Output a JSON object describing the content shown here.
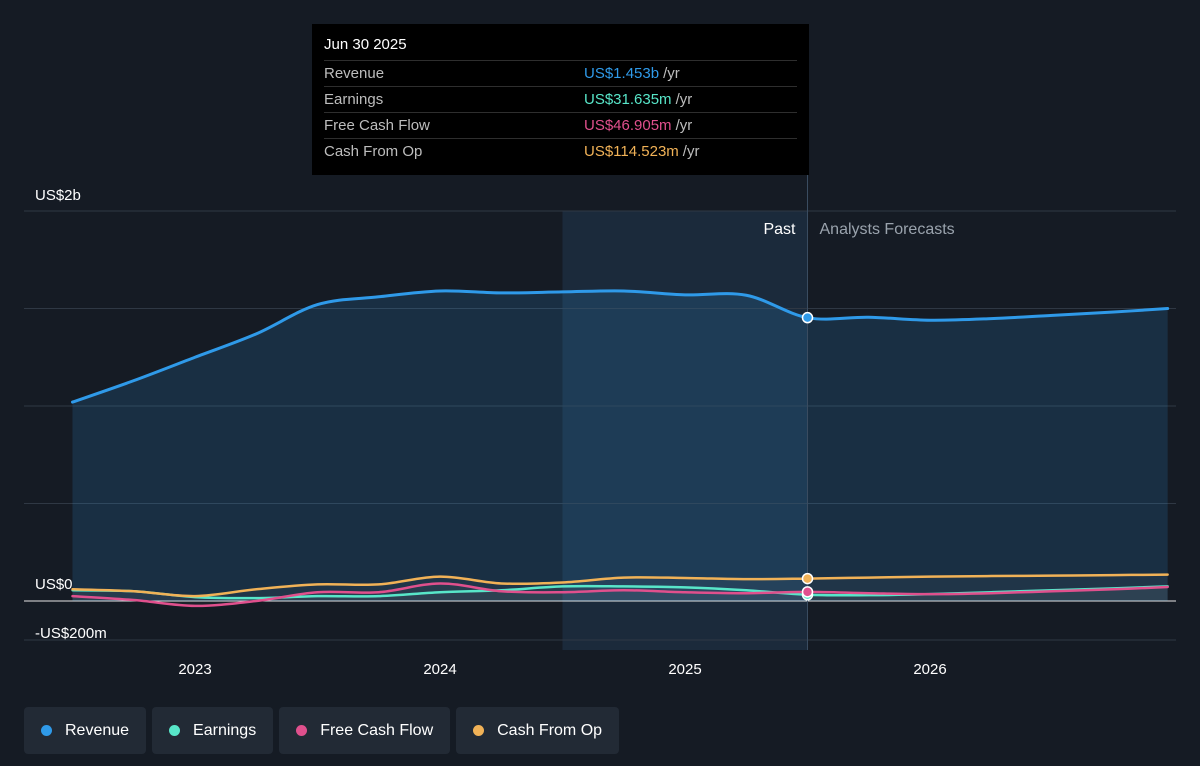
{
  "tooltip": {
    "date": "Jun 30 2025",
    "rows": [
      {
        "label": "Revenue",
        "value": "US$1.453b",
        "unit": "/yr",
        "color": "#2f9ae9"
      },
      {
        "label": "Earnings",
        "value": "US$31.635m",
        "unit": "/yr",
        "color": "#58e6c9"
      },
      {
        "label": "Free Cash Flow",
        "value": "US$46.905m",
        "unit": "/yr",
        "color": "#e0508d"
      },
      {
        "label": "Cash From Op",
        "value": "US$114.523m",
        "unit": "/yr",
        "color": "#f1b257"
      }
    ]
  },
  "legend": [
    {
      "label": "Revenue",
      "color": "#2f9ae9"
    },
    {
      "label": "Earnings",
      "color": "#58e6c9"
    },
    {
      "label": "Free Cash Flow",
      "color": "#e0508d"
    },
    {
      "label": "Cash From Op",
      "color": "#f1b257"
    }
  ],
  "chart_data": {
    "type": "line",
    "title": "",
    "xlabel": "",
    "ylabel": "",
    "x_ticks": [
      2023,
      2024,
      2025,
      2026
    ],
    "x_range": [
      2022.5,
      2026.97
    ],
    "ylim": [
      -200,
      2000
    ],
    "y_tick_labels": [
      {
        "value": 2000,
        "label": "US$2b"
      },
      {
        "value": 0,
        "label": "US$0"
      },
      {
        "value": -200,
        "label": "-US$200m"
      }
    ],
    "gridlines_y": [
      2000,
      1500,
      1000,
      500,
      0,
      -200
    ],
    "past_label": "Past",
    "forecast_label": "Analysts Forecasts",
    "past_end_x": 2025.5,
    "highlight_start_x": 2024.5,
    "units": "US$ millions",
    "series": [
      {
        "name": "Revenue",
        "color": "#2f9ae9",
        "area": true,
        "values": [
          [
            2022.5,
            1020
          ],
          [
            2022.75,
            1130
          ],
          [
            2023,
            1250
          ],
          [
            2023.25,
            1370
          ],
          [
            2023.5,
            1520
          ],
          [
            2023.75,
            1560
          ],
          [
            2024,
            1590
          ],
          [
            2024.25,
            1580
          ],
          [
            2024.5,
            1585
          ],
          [
            2024.75,
            1590
          ],
          [
            2025,
            1570
          ],
          [
            2025.25,
            1568
          ],
          [
            2025.5,
            1453
          ],
          [
            2025.75,
            1455
          ],
          [
            2026,
            1440
          ],
          [
            2026.25,
            1448
          ],
          [
            2026.5,
            1465
          ],
          [
            2026.75,
            1482
          ],
          [
            2026.97,
            1500
          ]
        ]
      },
      {
        "name": "Earnings",
        "color": "#58e6c9",
        "values": [
          [
            2022.5,
            55
          ],
          [
            2022.75,
            50
          ],
          [
            2023,
            20
          ],
          [
            2023.25,
            15
          ],
          [
            2023.5,
            25
          ],
          [
            2023.75,
            25
          ],
          [
            2024,
            45
          ],
          [
            2024.25,
            55
          ],
          [
            2024.5,
            75
          ],
          [
            2024.75,
            75
          ],
          [
            2025,
            70
          ],
          [
            2025.25,
            55
          ],
          [
            2025.5,
            32
          ],
          [
            2025.75,
            30
          ],
          [
            2026,
            35
          ],
          [
            2026.25,
            45
          ],
          [
            2026.5,
            55
          ],
          [
            2026.75,
            65
          ],
          [
            2026.97,
            75
          ]
        ]
      },
      {
        "name": "Free Cash Flow",
        "color": "#e0508d",
        "values": [
          [
            2022.5,
            25
          ],
          [
            2022.75,
            5
          ],
          [
            2023,
            -25
          ],
          [
            2023.25,
            0
          ],
          [
            2023.5,
            45
          ],
          [
            2023.75,
            45
          ],
          [
            2024,
            90
          ],
          [
            2024.25,
            50
          ],
          [
            2024.5,
            45
          ],
          [
            2024.75,
            55
          ],
          [
            2025,
            45
          ],
          [
            2025.25,
            40
          ],
          [
            2025.5,
            47
          ],
          [
            2025.75,
            40
          ],
          [
            2026,
            35
          ],
          [
            2026.25,
            40
          ],
          [
            2026.5,
            50
          ],
          [
            2026.75,
            60
          ],
          [
            2026.97,
            72
          ]
        ]
      },
      {
        "name": "Cash From Op",
        "color": "#f1b257",
        "values": [
          [
            2022.5,
            60
          ],
          [
            2022.75,
            50
          ],
          [
            2023,
            25
          ],
          [
            2023.25,
            60
          ],
          [
            2023.5,
            85
          ],
          [
            2023.75,
            85
          ],
          [
            2024,
            125
          ],
          [
            2024.25,
            90
          ],
          [
            2024.5,
            95
          ],
          [
            2024.75,
            120
          ],
          [
            2025,
            118
          ],
          [
            2025.25,
            112
          ],
          [
            2025.5,
            115
          ],
          [
            2025.75,
            120
          ],
          [
            2026,
            125
          ],
          [
            2026.25,
            128
          ],
          [
            2026.5,
            130
          ],
          [
            2026.75,
            133
          ],
          [
            2026.97,
            135
          ]
        ]
      }
    ]
  }
}
